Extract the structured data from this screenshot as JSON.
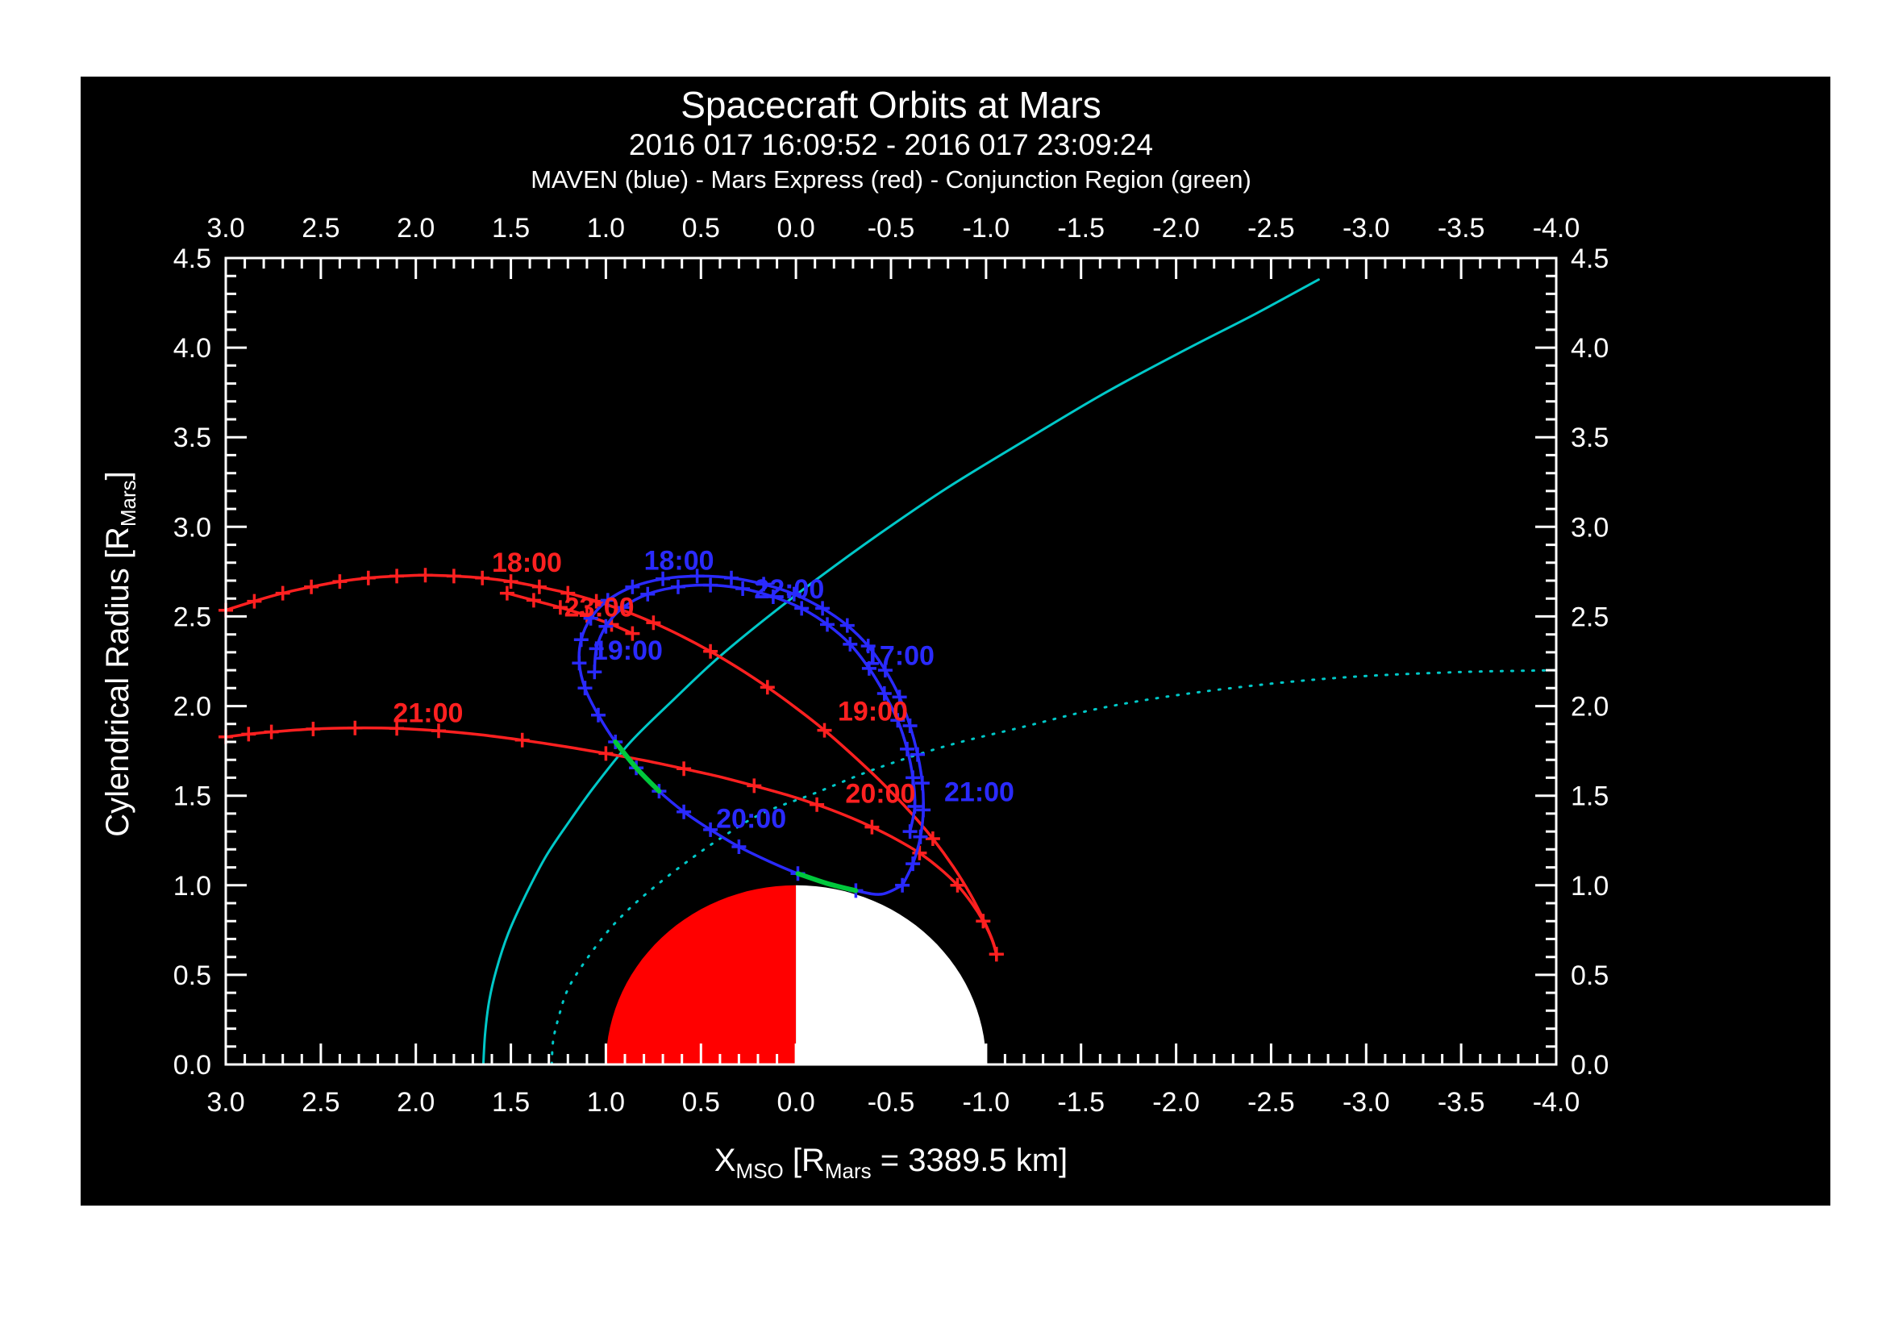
{
  "header": {
    "title": "Spacecraft Orbits at Mars",
    "subtitle": "2016 017 16:09:52 - 2016 017 23:09:24",
    "legend": "MAVEN (blue) - Mars Express (red) - Conjunction Region (green)"
  },
  "colors": {
    "background": "#ffffff",
    "panel": "#000000",
    "axis": "#ffffff",
    "maven": "#2a2aff",
    "mex": "#ff2020",
    "conjunction": "#00c83c",
    "boundary": "#00c8c8",
    "mars_day": "#ff0000",
    "mars_night": "#ffffff"
  },
  "axes": {
    "xlabel": {
      "pre": "X",
      "sub1": "MSO",
      "mid": " [R",
      "sub2": "Mars",
      "post": " = 3389.5 km]"
    },
    "ylabel": {
      "pre": "Cylendrical Radius [R",
      "sub": "Mars",
      "post": "]"
    }
  },
  "chart_data": {
    "type": "line",
    "title": "Spacecraft Orbits at Mars",
    "x_axis": {
      "label": "X_MSO [R_Mars = 3389.5 km]",
      "range": [
        3.0,
        -4.0
      ],
      "major_step": 0.5,
      "minor_step": 0.1,
      "tick_labels": [
        "3.0",
        "2.5",
        "2.0",
        "1.5",
        "1.0",
        "0.5",
        "0.0",
        "-0.5",
        "-1.0",
        "-1.5",
        "-2.0",
        "-2.5",
        "-3.0",
        "-3.5",
        "-4.0"
      ]
    },
    "y_axis": {
      "label": "Cylendrical Radius [R_Mars]",
      "range": [
        0.0,
        4.5
      ],
      "major_step": 0.5,
      "minor_step": 0.1,
      "tick_labels": [
        "0.0",
        "0.5",
        "1.0",
        "1.5",
        "2.0",
        "2.5",
        "3.0",
        "3.5",
        "4.0",
        "4.5"
      ]
    },
    "mars": {
      "radius": 1.0,
      "dayside_color": "#ff0000",
      "nightside_color": "#ffffff"
    },
    "series": [
      {
        "name": "bow-shock",
        "legend": "Bow shock",
        "color": "#00c8c8",
        "style": "solid",
        "width": 3,
        "points": [
          [
            1.645,
            0.0
          ],
          [
            1.635,
            0.18
          ],
          [
            1.614,
            0.355
          ],
          [
            1.576,
            0.53
          ],
          [
            1.513,
            0.733
          ],
          [
            1.42,
            0.95
          ],
          [
            1.313,
            1.166
          ],
          [
            1.19,
            1.36
          ],
          [
            1.057,
            1.556
          ],
          [
            0.87,
            1.8
          ],
          [
            0.64,
            2.04
          ],
          [
            0.43,
            2.25
          ],
          [
            0.209,
            2.446
          ],
          [
            -0.1,
            2.7
          ],
          [
            -0.437,
            2.959
          ],
          [
            -0.8,
            3.22
          ],
          [
            -1.214,
            3.488
          ],
          [
            -1.63,
            3.75
          ],
          [
            -2.05,
            3.989
          ],
          [
            -2.42,
            4.19
          ],
          [
            -2.75,
            4.38
          ]
        ]
      },
      {
        "name": "induced-magnetosphere-boundary",
        "legend": "IMB",
        "color": "#00c8c8",
        "style": "dotted",
        "width": 3,
        "points": [
          [
            1.285,
            0.0
          ],
          [
            1.277,
            0.135
          ],
          [
            1.247,
            0.27
          ],
          [
            1.2,
            0.42
          ],
          [
            1.111,
            0.573
          ],
          [
            1.0,
            0.73
          ],
          [
            0.9,
            0.845
          ],
          [
            0.78,
            0.96
          ],
          [
            0.6,
            1.11
          ],
          [
            0.4,
            1.26
          ],
          [
            0.18,
            1.4
          ],
          [
            -0.093,
            1.511
          ],
          [
            -0.42,
            1.65
          ],
          [
            -0.8,
            1.78
          ],
          [
            -1.2,
            1.885
          ],
          [
            -1.584,
            1.984
          ],
          [
            -2.0,
            2.06
          ],
          [
            -2.5,
            2.125
          ],
          [
            -2.97,
            2.166
          ],
          [
            -3.5,
            2.19
          ],
          [
            -4.0,
            2.2
          ]
        ]
      },
      {
        "name": "mex-orbit-inbound",
        "legend": "Mars Express",
        "color": "#ff2020",
        "style": "solid",
        "width": 3.5,
        "points": [
          [
            3.0,
            2.535
          ],
          [
            2.85,
            2.585
          ],
          [
            2.7,
            2.63
          ],
          [
            2.55,
            2.665
          ],
          [
            2.4,
            2.695
          ],
          [
            2.25,
            2.715
          ],
          [
            2.1,
            2.725
          ],
          [
            1.95,
            2.73
          ],
          [
            1.8,
            2.725
          ],
          [
            1.65,
            2.715
          ],
          [
            1.5,
            2.695
          ],
          [
            1.35,
            2.665
          ],
          [
            1.2,
            2.63
          ],
          [
            1.05,
            2.585
          ],
          [
            0.9,
            2.53
          ],
          [
            0.75,
            2.465
          ],
          [
            0.6,
            2.39
          ],
          [
            0.45,
            2.305
          ],
          [
            0.3,
            2.21
          ],
          [
            0.15,
            2.105
          ],
          [
            0.0,
            1.99
          ],
          [
            -0.15,
            1.865
          ],
          [
            -0.3,
            1.725
          ],
          [
            -0.45,
            1.575
          ],
          [
            -0.6,
            1.41
          ],
          [
            -0.72,
            1.26
          ],
          [
            -0.83,
            1.1
          ],
          [
            -0.92,
            0.945
          ],
          [
            -0.99,
            0.8
          ],
          [
            -1.035,
            0.69
          ],
          [
            -1.055,
            0.615
          ]
        ],
        "tick_indices": [
          0,
          1,
          2,
          3,
          4,
          5,
          6,
          7,
          8,
          9,
          10,
          11,
          12,
          13,
          15,
          17,
          19,
          21,
          25,
          30
        ]
      },
      {
        "name": "mex-orbit-outbound",
        "legend": "Mars Express",
        "color": "#ff2020",
        "style": "solid",
        "width": 3.5,
        "points": [
          [
            -1.055,
            0.615
          ],
          [
            -1.03,
            0.7
          ],
          [
            -0.985,
            0.8
          ],
          [
            -0.925,
            0.9
          ],
          [
            -0.85,
            1.0
          ],
          [
            -0.755,
            1.095
          ],
          [
            -0.65,
            1.18
          ],
          [
            -0.53,
            1.255
          ],
          [
            -0.4,
            1.325
          ],
          [
            -0.26,
            1.39
          ],
          [
            -0.11,
            1.45
          ],
          [
            0.05,
            1.505
          ],
          [
            0.22,
            1.555
          ],
          [
            0.4,
            1.605
          ],
          [
            0.59,
            1.65
          ],
          [
            0.79,
            1.695
          ],
          [
            1.0,
            1.735
          ],
          [
            1.22,
            1.775
          ],
          [
            1.44,
            1.81
          ],
          [
            1.66,
            1.84
          ],
          [
            1.88,
            1.862
          ],
          [
            2.1,
            1.875
          ],
          [
            2.32,
            1.878
          ],
          [
            2.54,
            1.872
          ],
          [
            2.76,
            1.856
          ],
          [
            2.88,
            1.843
          ],
          [
            3.0,
            1.828
          ]
        ],
        "tick_indices": [
          0,
          2,
          4,
          6,
          8,
          10,
          12,
          14,
          16,
          18,
          20,
          21,
          22,
          23,
          24,
          25,
          26
        ]
      },
      {
        "name": "mex-orbit-end-pass",
        "legend": "Mars Express",
        "color": "#ff2020",
        "style": "solid",
        "width": 3.5,
        "points": [
          [
            1.52,
            2.63
          ],
          [
            1.38,
            2.59
          ],
          [
            1.24,
            2.55
          ],
          [
            1.1,
            2.505
          ],
          [
            0.97,
            2.455
          ],
          [
            0.86,
            2.405
          ]
        ],
        "tick_indices": [
          0,
          1,
          2,
          3,
          4,
          5
        ]
      },
      {
        "name": "maven-orbit",
        "legend": "MAVEN",
        "color": "#2a2aff",
        "style": "solid",
        "width": 3.5,
        "points": [
          [
            -0.56,
            1.0
          ],
          [
            -0.615,
            1.12
          ],
          [
            -0.655,
            1.27
          ],
          [
            -0.67,
            1.42
          ],
          [
            -0.665,
            1.57
          ],
          [
            -0.64,
            1.73
          ],
          [
            -0.6,
            1.89
          ],
          [
            -0.545,
            2.05
          ],
          [
            -0.47,
            2.2
          ],
          [
            -0.38,
            2.335
          ],
          [
            -0.27,
            2.45
          ],
          [
            -0.14,
            2.545
          ],
          [
            0.01,
            2.625
          ],
          [
            0.17,
            2.68
          ],
          [
            0.34,
            2.715
          ],
          [
            0.52,
            2.725
          ],
          [
            0.7,
            2.71
          ],
          [
            0.86,
            2.665
          ],
          [
            0.99,
            2.59
          ],
          [
            1.08,
            2.49
          ],
          [
            1.13,
            2.37
          ],
          [
            1.14,
            2.24
          ],
          [
            1.11,
            2.1
          ],
          [
            1.04,
            1.95
          ],
          [
            0.95,
            1.8
          ],
          [
            0.84,
            1.655
          ],
          [
            0.72,
            1.525
          ],
          [
            0.59,
            1.41
          ],
          [
            0.45,
            1.31
          ],
          [
            0.3,
            1.215
          ],
          [
            0.145,
            1.135
          ],
          [
            -0.01,
            1.065
          ],
          [
            -0.165,
            1.01
          ],
          [
            -0.315,
            0.97
          ],
          [
            -0.45,
            0.95
          ],
          [
            -0.56,
            1.0
          ]
        ],
        "tick_indices": [
          0,
          1,
          2,
          3,
          4,
          5,
          6,
          7,
          8,
          9,
          10,
          11,
          12,
          13,
          14,
          15,
          16,
          17,
          18,
          19,
          20,
          21,
          22,
          23,
          24,
          25,
          26,
          27,
          28,
          29,
          31,
          33
        ]
      },
      {
        "name": "maven-orbit-second-pass",
        "legend": "MAVEN",
        "color": "#2a2aff",
        "style": "solid",
        "width": 3.5,
        "points": [
          [
            -0.6,
            1.3
          ],
          [
            -0.625,
            1.44
          ],
          [
            -0.615,
            1.6
          ],
          [
            -0.585,
            1.76
          ],
          [
            -0.535,
            1.92
          ],
          [
            -0.465,
            2.07
          ],
          [
            -0.385,
            2.21
          ],
          [
            -0.285,
            2.345
          ],
          [
            -0.165,
            2.455
          ],
          [
            -0.03,
            2.545
          ],
          [
            0.12,
            2.61
          ],
          [
            0.28,
            2.655
          ],
          [
            0.45,
            2.675
          ],
          [
            0.62,
            2.665
          ],
          [
            0.78,
            2.625
          ],
          [
            0.91,
            2.55
          ],
          [
            1.0,
            2.445
          ],
          [
            1.05,
            2.32
          ],
          [
            1.06,
            2.19
          ]
        ],
        "tick_indices": [
          0,
          1,
          2,
          3,
          4,
          5,
          6,
          7,
          8,
          9,
          10,
          11,
          12,
          13,
          14,
          15,
          16,
          17,
          18
        ]
      },
      {
        "name": "conjunction-region-1",
        "legend": "Conjunction Region",
        "color": "#00c83c",
        "style": "solid",
        "width": 6,
        "points": [
          [
            0.72,
            1.525
          ],
          [
            0.84,
            1.655
          ],
          [
            0.95,
            1.8
          ]
        ]
      },
      {
        "name": "conjunction-region-2",
        "legend": "Conjunction Region",
        "color": "#00c83c",
        "style": "solid",
        "width": 6,
        "points": [
          [
            -0.01,
            1.065
          ],
          [
            -0.165,
            1.01
          ],
          [
            -0.315,
            0.97
          ]
        ]
      }
    ],
    "time_labels": [
      {
        "text": "17:00",
        "x": -0.36,
        "y": 2.23,
        "color": "#2a2aff"
      },
      {
        "text": "18:00",
        "x": 0.8,
        "y": 2.76,
        "color": "#2a2aff"
      },
      {
        "text": "19:00",
        "x": 1.07,
        "y": 2.26,
        "color": "#2a2aff"
      },
      {
        "text": "20:00",
        "x": 0.42,
        "y": 1.32,
        "color": "#2a2aff"
      },
      {
        "text": "21:00",
        "x": -0.78,
        "y": 1.47,
        "color": "#2a2aff"
      },
      {
        "text": "22:00",
        "x": 0.22,
        "y": 2.6,
        "color": "#2a2aff"
      },
      {
        "text": "18:00",
        "x": 1.6,
        "y": 2.75,
        "color": "#ff2020"
      },
      {
        "text": "19:00",
        "x": -0.22,
        "y": 1.92,
        "color": "#ff2020"
      },
      {
        "text": "20:00",
        "x": -0.26,
        "y": 1.46,
        "color": "#ff2020"
      },
      {
        "text": "21:00",
        "x": 2.12,
        "y": 1.91,
        "color": "#ff2020"
      },
      {
        "text": "23:00",
        "x": 1.22,
        "y": 2.5,
        "color": "#ff2020"
      }
    ]
  }
}
